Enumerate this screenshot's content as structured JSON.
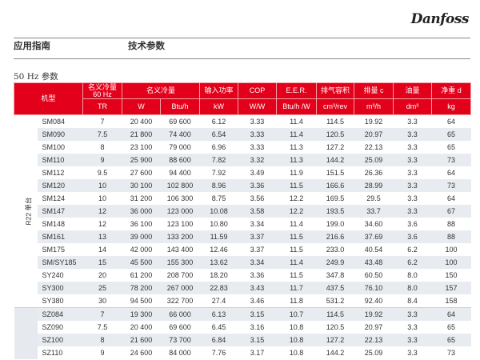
{
  "logo": "Danfoss",
  "header": {
    "left": "应用指南",
    "right": "技术参数"
  },
  "section_title": "50 Hz 参数",
  "table": {
    "headers_top": [
      "机型",
      "名义冷量 60 Hz",
      "名义冷量",
      "输入功率",
      "COP",
      "E.E.R.",
      "排气容积",
      "排量 c",
      "油量",
      "净重 d"
    ],
    "headers_units": [
      "TR",
      "W",
      "Btu/h",
      "kW",
      "W/W",
      "Btu/h /W",
      "cm³/rev",
      "m³/h",
      "dm³",
      "kg"
    ],
    "group_label": "R22 单台",
    "rows": [
      [
        "SM084",
        "7",
        "20 400",
        "69 600",
        "6.12",
        "3.33",
        "11.4",
        "114.5",
        "19.92",
        "3.3",
        "64"
      ],
      [
        "SM090",
        "7.5",
        "21 800",
        "74 400",
        "6.54",
        "3.33",
        "11.4",
        "120.5",
        "20.97",
        "3.3",
        "65"
      ],
      [
        "SM100",
        "8",
        "23 100",
        "79 000",
        "6.96",
        "3.33",
        "11.3",
        "127.2",
        "22.13",
        "3.3",
        "65"
      ],
      [
        "SM110",
        "9",
        "25 900",
        "88 600",
        "7.82",
        "3.32",
        "11.3",
        "144.2",
        "25.09",
        "3.3",
        "73"
      ],
      [
        "SM112",
        "9.5",
        "27 600",
        "94 400",
        "7.92",
        "3.49",
        "11.9",
        "151.5",
        "26.36",
        "3.3",
        "64"
      ],
      [
        "SM120",
        "10",
        "30 100",
        "102 800",
        "8.96",
        "3.36",
        "11.5",
        "166.6",
        "28.99",
        "3.3",
        "73"
      ],
      [
        "SM124",
        "10",
        "31 200",
        "106 300",
        "8.75",
        "3.56",
        "12.2",
        "169.5",
        "29.5",
        "3.3",
        "64"
      ],
      [
        "SM147",
        "12",
        "36 000",
        "123 000",
        "10.08",
        "3.58",
        "12.2",
        "193.5",
        "33.7",
        "3.3",
        "67"
      ],
      [
        "SM148",
        "12",
        "36 100",
        "123 100",
        "10.80",
        "3.34",
        "11.4",
        "199.0",
        "34.60",
        "3.6",
        "88"
      ],
      [
        "SM161",
        "13",
        "39 000",
        "133 200",
        "11.59",
        "3.37",
        "11.5",
        "216.6",
        "37.69",
        "3.6",
        "88"
      ],
      [
        "SM175",
        "14",
        "42 000",
        "143 400",
        "12.46",
        "3.37",
        "11.5",
        "233.0",
        "40.54",
        "6.2",
        "100"
      ],
      [
        "SM/SY185",
        "15",
        "45 500",
        "155 300",
        "13.62",
        "3.34",
        "11.4",
        "249.9",
        "43.48",
        "6.2",
        "100"
      ],
      [
        "SY240",
        "20",
        "61 200",
        "208 700",
        "18.20",
        "3.36",
        "11.5",
        "347.8",
        "60.50",
        "8.0",
        "150"
      ],
      [
        "SY300",
        "25",
        "78 200",
        "267 000",
        "22.83",
        "3.43",
        "11.7",
        "437.5",
        "76.10",
        "8.0",
        "157"
      ],
      [
        "SY380",
        "30",
        "94 500",
        "322 700",
        "27.4",
        "3.46",
        "11.8",
        "531.2",
        "92.40",
        "8.4",
        "158"
      ]
    ],
    "rows2": [
      [
        "SZ084",
        "7",
        "19 300",
        "66 000",
        "6.13",
        "3.15",
        "10.7",
        "114.5",
        "19.92",
        "3.3",
        "64"
      ],
      [
        "SZ090",
        "7.5",
        "20 400",
        "69 600",
        "6.45",
        "3.16",
        "10.8",
        "120.5",
        "20.97",
        "3.3",
        "65"
      ],
      [
        "SZ100",
        "8",
        "21 600",
        "73 700",
        "6.84",
        "3.15",
        "10.8",
        "127.2",
        "22.13",
        "3.3",
        "65"
      ],
      [
        "SZ110",
        "9",
        "24 600",
        "84 000",
        "7.76",
        "3.17",
        "10.8",
        "144.2",
        "25.09",
        "3.3",
        "73"
      ]
    ]
  }
}
